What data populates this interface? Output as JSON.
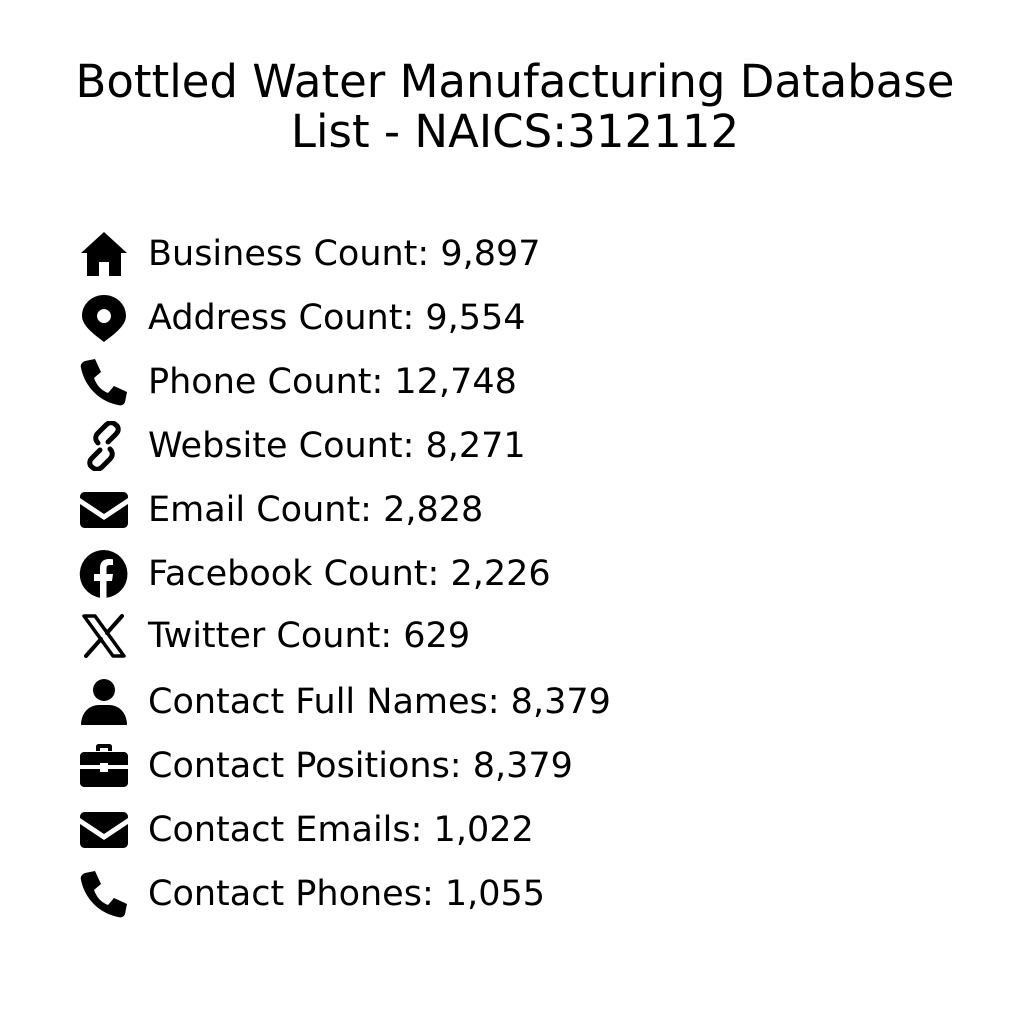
{
  "title": {
    "line1": "Bottled Water Manufacturing Database",
    "line2": "List - NAICS:312112"
  },
  "stats": [
    {
      "icon": "home-icon",
      "label": "Business Count: 9,897"
    },
    {
      "icon": "map-pin-icon",
      "label": "Address Count: 9,554"
    },
    {
      "icon": "phone-icon",
      "label": "Phone Count: 12,748"
    },
    {
      "icon": "link-icon",
      "label": "Website Count: 8,271"
    },
    {
      "icon": "envelope-icon",
      "label": "Email Count: 2,828"
    },
    {
      "icon": "facebook-icon",
      "label": "Facebook Count: 2,226"
    },
    {
      "icon": "x-twitter-icon",
      "label": "Twitter Count: 629"
    },
    {
      "icon": "user-icon",
      "label": "Contact Full Names: 8,379"
    },
    {
      "icon": "briefcase-icon",
      "label": "Contact Positions: 8,379"
    },
    {
      "icon": "envelope-icon",
      "label": "Contact Emails: 1,022"
    },
    {
      "icon": "phone-icon",
      "label": "Contact Phones: 1,055"
    }
  ],
  "colors": {
    "text": "#000000",
    "background": "#ffffff"
  }
}
